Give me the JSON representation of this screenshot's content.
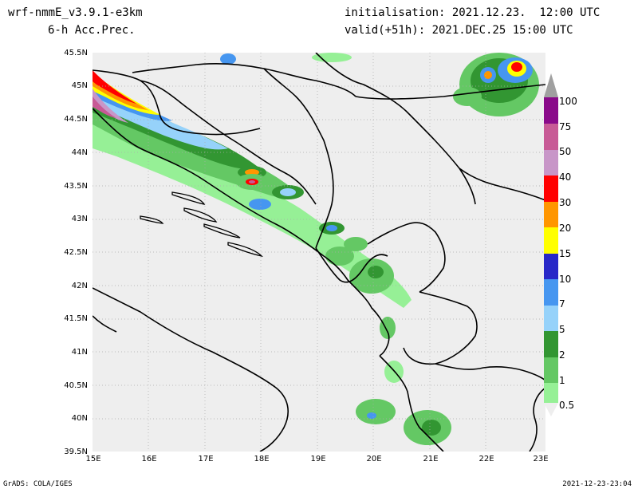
{
  "header": {
    "model": "wrf-nmmE_v3.9.1-e3km",
    "field": "6-h Acc.Prec.",
    "init": "initialisation: 2021.12.23.  12:00 UTC",
    "valid": "valid(+51h): 2021.DEC.25 15:00 UTC"
  },
  "axes": {
    "lat_ticks": [
      "45.5N",
      "45N",
      "44.5N",
      "44N",
      "43.5N",
      "43N",
      "42.5N",
      "42N",
      "41.5N",
      "41N",
      "40.5N",
      "40N",
      "39.5N"
    ],
    "lon_ticks": [
      "15E",
      "16E",
      "17E",
      "18E",
      "19E",
      "20E",
      "21E",
      "22E",
      "23E"
    ]
  },
  "legend": {
    "levels": [
      "100",
      "75",
      "50",
      "40",
      "30",
      "20",
      "15",
      "10",
      "7",
      "5",
      "2",
      "1",
      "0.5"
    ],
    "colors": [
      "#a0a0a0",
      "#8a0a8a",
      "#c85a96",
      "#c896c8",
      "#ff0000",
      "#ff9600",
      "#ffff00",
      "#2828c8",
      "#4696f0",
      "#96d2fa",
      "#329632",
      "#64c864",
      "#96f096"
    ]
  },
  "footer": {
    "left": "GrADS: COLA/IGES",
    "right": "2021-12-23-23:04"
  },
  "map": {
    "land_color": "#eeeeee",
    "border_color": "#000000",
    "grid_color": "#aaaaaa"
  }
}
